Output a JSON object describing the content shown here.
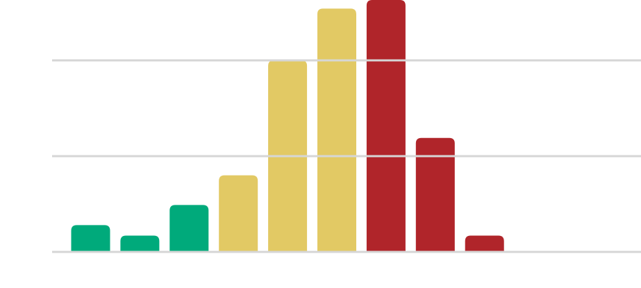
{
  "chart_data": {
    "type": "bar",
    "categories": [
      null,
      null,
      null,
      null,
      null,
      null,
      null,
      null,
      null
    ],
    "values": [
      2.8,
      1.7,
      4.9,
      8,
      20,
      25.4,
      26.3,
      11.9,
      1.7
    ],
    "colors": [
      "#00aa7b",
      "#00aa7b",
      "#00aa7b",
      "#e2c964",
      "#e2c964",
      "#e2c964",
      "#b0252a",
      "#b0252a",
      "#b0252a"
    ],
    "ylim": [
      0,
      26.3
    ],
    "yticks": [
      0,
      10,
      20
    ],
    "grid": true
  }
}
